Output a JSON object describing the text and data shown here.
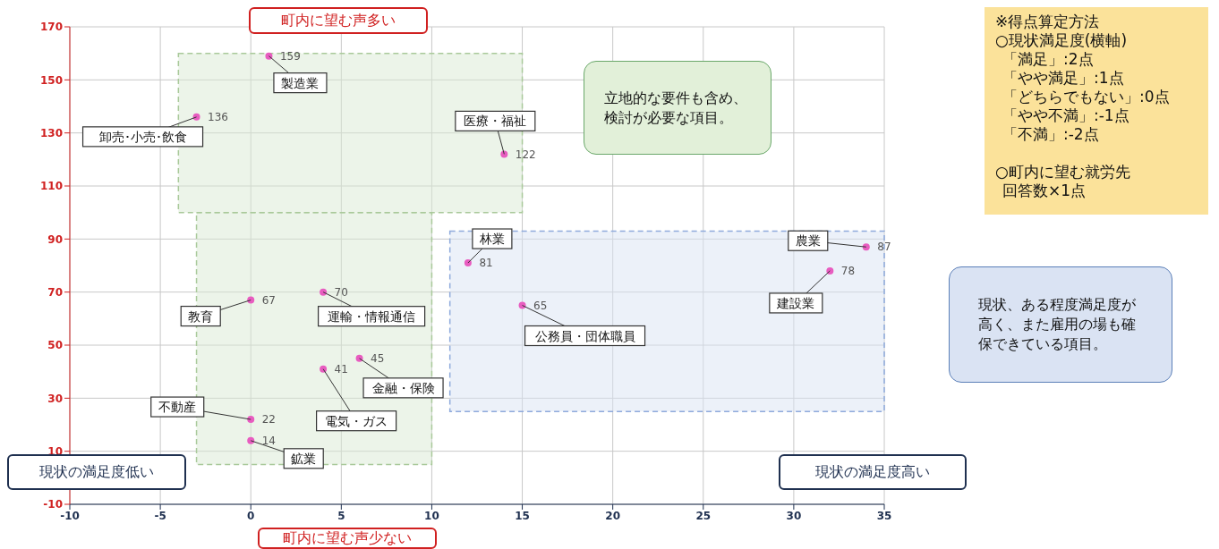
{
  "chart_data": {
    "type": "scatter",
    "x": [
      1,
      -3,
      14,
      12,
      34,
      32,
      15,
      0,
      4,
      6,
      4,
      0,
      0
    ],
    "series": [
      {
        "color": "#e85cc0",
        "values": [
          159,
          136,
          122,
          81,
          87,
          78,
          65,
          67,
          70,
          45,
          41,
          22,
          14
        ]
      }
    ],
    "data_labels": true,
    "xlim": [
      -10,
      35
    ],
    "xticks": [
      -10,
      -5,
      0,
      5,
      10,
      15,
      20,
      25,
      30,
      35
    ],
    "ylim": [
      -10,
      170
    ],
    "yticks": [
      -10,
      10,
      30,
      50,
      70,
      90,
      110,
      130,
      150,
      170
    ],
    "grid": true,
    "marker": "circle",
    "legend": false,
    "annotations": [
      {
        "text": "製造業",
        "x": 1,
        "y": 159
      },
      {
        "text": "卸売･小売･飲食",
        "x": -3,
        "y": 136
      },
      {
        "text": "医療・福祉",
        "x": 14,
        "y": 122
      },
      {
        "text": "林業",
        "x": 12,
        "y": 81
      },
      {
        "text": "農業",
        "x": 34,
        "y": 87
      },
      {
        "text": "建設業",
        "x": 32,
        "y": 78
      },
      {
        "text": "公務員・団体職員",
        "x": 15,
        "y": 65
      },
      {
        "text": "教育",
        "x": 0,
        "y": 67
      },
      {
        "text": "運輸・情報通信",
        "x": 4,
        "y": 70
      },
      {
        "text": "金融・保険",
        "x": 6,
        "y": 45
      },
      {
        "text": "電気・ガス",
        "x": 4,
        "y": 41
      },
      {
        "text": "不動産",
        "x": 0,
        "y": 22
      },
      {
        "text": "鉱業",
        "x": 0,
        "y": 14
      },
      "町内に望む声多い",
      "町内に望む声少ない",
      "現状の満足度低い",
      "現状の満足度高い",
      "立地的な要件も含め、検討が必要な項目。",
      "現状、ある程度満足度が高く、また雇用の場も確保できている項目。",
      "※得点算定方法",
      "○現状満足度(横軸)",
      "「満足」:2点",
      "「やや満足」:1点",
      "「どちらでもない」:0点",
      "「やや不満」:-1点",
      "「不満」:-2点",
      "○町内に望む就労先",
      "回答数×1点"
    ]
  }
}
